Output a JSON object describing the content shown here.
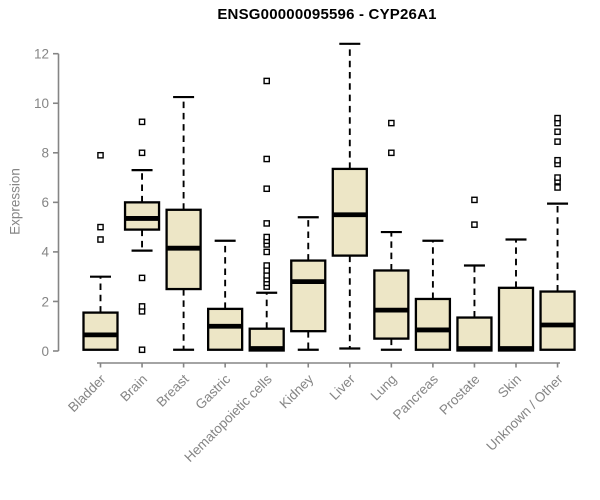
{
  "chart_data": {
    "type": "boxplot",
    "title": "ENSG00000095596 - CYP26A1",
    "ylabel": "Expression",
    "xlabel": "",
    "ylim": [
      0,
      12
    ],
    "yticks": [
      0,
      2,
      4,
      6,
      8,
      10,
      12
    ],
    "grid": false,
    "legend": false,
    "categories": [
      "Bladder",
      "Brain",
      "Breast",
      "Gastric",
      "Hematopoietic cells",
      "Kidney",
      "Liver",
      "Lung",
      "Pancreas",
      "Prostate",
      "Skin",
      "Unknown / Other"
    ],
    "boxes": [
      {
        "tissue": "Bladder",
        "whisker_low": null,
        "q1": 0.05,
        "median": 0.65,
        "q3": 1.55,
        "whisker_high": 3.0,
        "outliers": [
          4.5,
          5.0,
          7.9
        ]
      },
      {
        "tissue": "Brain",
        "whisker_low": 4.05,
        "q1": 4.9,
        "median": 5.35,
        "q3": 6.0,
        "whisker_high": 7.3,
        "outliers": [
          0.05,
          1.6,
          1.8,
          2.95,
          8.0,
          9.25
        ]
      },
      {
        "tissue": "Breast",
        "whisker_low": 0.05,
        "q1": 2.5,
        "median": 4.15,
        "q3": 5.7,
        "whisker_high": 10.25,
        "outliers": []
      },
      {
        "tissue": "Gastric",
        "whisker_low": null,
        "q1": 0.05,
        "median": 1.0,
        "q3": 1.7,
        "whisker_high": 4.45,
        "outliers": []
      },
      {
        "tissue": "Hematopoietic cells",
        "whisker_low": null,
        "q1": 0.02,
        "median": 0.1,
        "q3": 0.9,
        "whisker_high": 2.35,
        "outliers": [
          2.6,
          2.75,
          2.9,
          3.05,
          3.25,
          3.45,
          4.0,
          4.3,
          4.45,
          4.6,
          5.15,
          6.55,
          7.75,
          10.9
        ]
      },
      {
        "tissue": "Kidney",
        "whisker_low": 0.05,
        "q1": 0.8,
        "median": 2.8,
        "q3": 3.65,
        "whisker_high": 5.4,
        "outliers": []
      },
      {
        "tissue": "Liver",
        "whisker_low": 0.1,
        "q1": 3.85,
        "median": 5.5,
        "q3": 7.35,
        "whisker_high": 12.4,
        "outliers": []
      },
      {
        "tissue": "Lung",
        "whisker_low": 0.05,
        "q1": 0.5,
        "median": 1.65,
        "q3": 3.25,
        "whisker_high": 4.8,
        "outliers": [
          8.0,
          9.2
        ]
      },
      {
        "tissue": "Pancreas",
        "whisker_low": null,
        "q1": 0.05,
        "median": 0.85,
        "q3": 2.1,
        "whisker_high": 4.45,
        "outliers": []
      },
      {
        "tissue": "Prostate",
        "whisker_low": null,
        "q1": 0.02,
        "median": 0.1,
        "q3": 1.35,
        "whisker_high": 3.45,
        "outliers": [
          5.1,
          6.1
        ]
      },
      {
        "tissue": "Skin",
        "whisker_low": null,
        "q1": 0.02,
        "median": 0.1,
        "q3": 2.55,
        "whisker_high": 4.5,
        "outliers": []
      },
      {
        "tissue": "Unknown / Other",
        "whisker_low": null,
        "q1": 0.05,
        "median": 1.05,
        "q3": 2.4,
        "whisker_high": 5.95,
        "outliers": [
          6.6,
          6.85,
          7.0,
          7.55,
          7.7,
          8.45,
          8.85,
          9.2,
          9.4
        ]
      }
    ],
    "colors": {
      "box_fill": "#ede6c6",
      "box_stroke": "#000000",
      "median": "#000000",
      "whisker": "#000000",
      "outlier_fill": "#ffffff",
      "outlier_stroke": "#000000",
      "axis": "#858585",
      "title": "#000000",
      "background": "#ffffff"
    }
  }
}
